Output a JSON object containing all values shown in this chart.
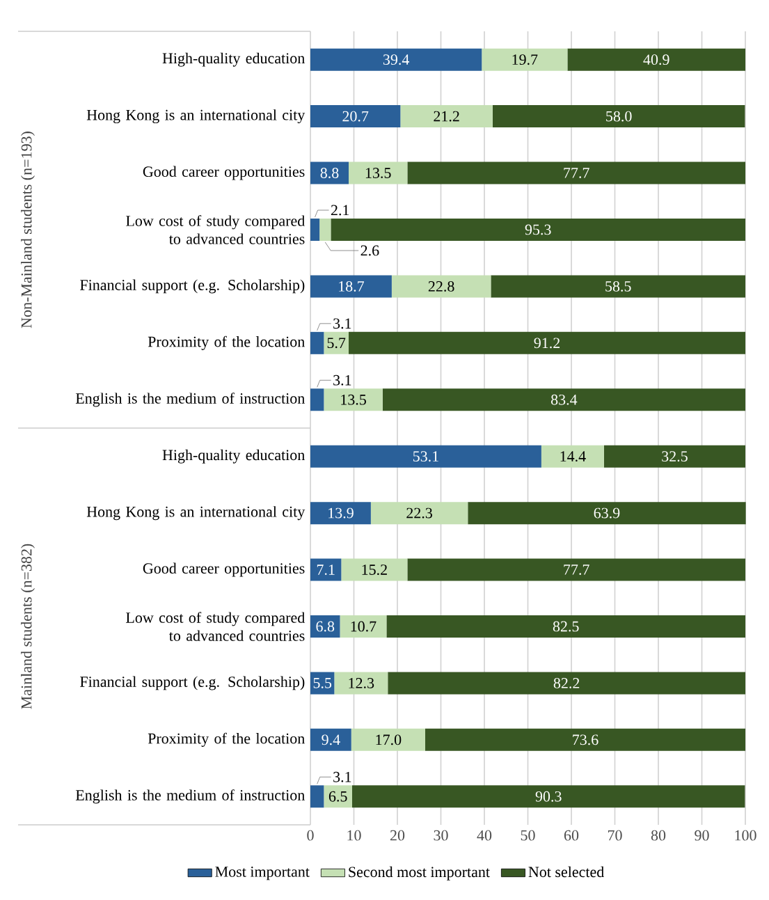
{
  "chart_data": {
    "type": "bar",
    "orientation": "horizontal",
    "stacked": true,
    "categories": [
      "High-quality education",
      "Hong Kong is an international city",
      "Good career opportunities",
      "Low cost of study compared to advanced countries",
      "Financial support (e.g. Scholarship)",
      "Proximity of the location",
      "English is the medium of instruction",
      "High-quality education",
      "Hong Kong is an international city",
      "Good career opportunities",
      "Low cost of study compared to advanced countries",
      "Financial support (e.g. Scholarship)",
      "Proximity of the location",
      "English is the medium of instruction"
    ],
    "series": [
      {
        "name": "Most important",
        "color": "#2a6099",
        "values": [
          39.4,
          20.7,
          8.8,
          2.1,
          18.7,
          3.1,
          3.1,
          53.1,
          13.9,
          7.1,
          6.8,
          5.5,
          9.4,
          3.1
        ],
        "value_labels": [
          "39.4",
          "20.7",
          "8.8",
          "2.1",
          "18.7",
          "3.1",
          "3.1",
          "53.1",
          "13.9",
          "7.1",
          "6.8",
          "5.5",
          "9.4",
          "3.1"
        ]
      },
      {
        "name": "Second most important",
        "color": "#c5e0b4",
        "values": [
          19.7,
          21.2,
          13.5,
          2.6,
          22.8,
          5.7,
          13.5,
          14.4,
          22.3,
          15.2,
          10.7,
          12.3,
          17.0,
          6.5
        ],
        "value_labels": [
          "19.7",
          "21.2",
          "13.5",
          "2.6",
          "22.8",
          "5.7",
          "13.5",
          "14.4",
          "22.3",
          "15.2",
          "10.7",
          "12.3",
          "17.0",
          "6.5"
        ]
      },
      {
        "name": "Not selected",
        "color": "#385723",
        "values": [
          40.9,
          58.0,
          77.7,
          95.3,
          58.5,
          91.2,
          83.4,
          32.5,
          63.9,
          77.7,
          82.5,
          82.2,
          73.6,
          90.3
        ],
        "value_labels": [
          "40.9",
          "58.0",
          "77.7",
          "95.3",
          "58.5",
          "91.2",
          "83.4",
          "32.5",
          "63.9",
          "77.7",
          "82.5",
          "82.2",
          "73.6",
          "90.3"
        ]
      }
    ],
    "annotations": [
      "Non-Mainland students (n=193)",
      "Mainland students (n=382)"
    ],
    "xlim": [
      0,
      100
    ],
    "xticks": [
      0,
      10,
      20,
      30,
      40,
      50,
      60,
      70,
      80,
      90,
      100
    ],
    "grid": "x",
    "legend": "bottom"
  }
}
